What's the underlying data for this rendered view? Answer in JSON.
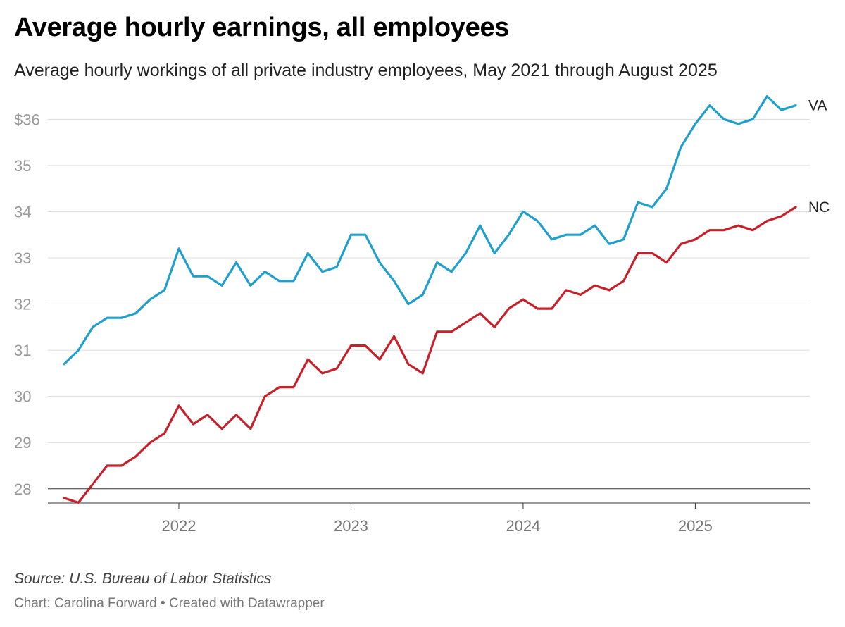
{
  "title": "Average hourly earnings, all employees",
  "subtitle": "Average hourly workings of all private industry employees, May 2021 through August 2025",
  "source": "Source: U.S. Bureau of Labor Statistics",
  "credit": {
    "chart_by": "Chart: Carolina Forward",
    "separator": " • ",
    "created_with": "Created with Datawrapper"
  },
  "chart_data": {
    "type": "line",
    "title": "Average hourly earnings, all employees",
    "xlabel": "",
    "ylabel": "",
    "x_start": "2021-05",
    "x_end": "2025-08",
    "x_ticks": [
      "2022",
      "2023",
      "2024",
      "2025"
    ],
    "y_ticks": [
      28,
      29,
      30,
      31,
      32,
      33,
      34,
      35,
      36
    ],
    "y_tick_labels": [
      "28",
      "29",
      "30",
      "31",
      "32",
      "33",
      "34",
      "35",
      "$36"
    ],
    "ylim": [
      27.6,
      36.6
    ],
    "grid": true,
    "legend": "line-end labels",
    "x": [
      "2021-05",
      "2021-06",
      "2021-07",
      "2021-08",
      "2021-09",
      "2021-10",
      "2021-11",
      "2021-12",
      "2022-01",
      "2022-02",
      "2022-03",
      "2022-04",
      "2022-05",
      "2022-06",
      "2022-07",
      "2022-08",
      "2022-09",
      "2022-10",
      "2022-11",
      "2022-12",
      "2023-01",
      "2023-02",
      "2023-03",
      "2023-04",
      "2023-05",
      "2023-06",
      "2023-07",
      "2023-08",
      "2023-09",
      "2023-10",
      "2023-11",
      "2023-12",
      "2024-01",
      "2024-02",
      "2024-03",
      "2024-04",
      "2024-05",
      "2024-06",
      "2024-07",
      "2024-08",
      "2024-09",
      "2024-10",
      "2024-11",
      "2024-12",
      "2025-01",
      "2025-02",
      "2025-03",
      "2025-04",
      "2025-05",
      "2025-06",
      "2025-07",
      "2025-08"
    ],
    "series": [
      {
        "name": "VA",
        "color": "#1FA0CC",
        "values": [
          30.7,
          31.0,
          31.5,
          31.7,
          31.7,
          31.8,
          32.1,
          32.3,
          33.2,
          32.6,
          32.6,
          32.4,
          32.9,
          32.4,
          32.7,
          32.5,
          32.5,
          33.1,
          32.7,
          32.8,
          33.5,
          33.5,
          32.9,
          32.5,
          32.0,
          32.2,
          32.9,
          32.7,
          33.1,
          33.7,
          33.1,
          33.5,
          34.0,
          33.8,
          33.4,
          33.5,
          33.5,
          33.7,
          33.3,
          33.4,
          34.2,
          34.1,
          34.5,
          35.4,
          35.9,
          36.3,
          36.0,
          35.9,
          36.0,
          36.5,
          36.2,
          36.3
        ]
      },
      {
        "name": "NC",
        "color": "#C8202A",
        "values": [
          27.8,
          27.7,
          28.1,
          28.5,
          28.5,
          28.7,
          29.0,
          29.2,
          29.8,
          29.4,
          29.6,
          29.3,
          29.6,
          29.3,
          30.0,
          30.2,
          30.2,
          30.8,
          30.5,
          30.6,
          31.1,
          31.1,
          30.8,
          31.3,
          30.7,
          30.5,
          31.4,
          31.4,
          31.6,
          31.8,
          31.5,
          31.9,
          32.1,
          31.9,
          31.9,
          32.3,
          32.2,
          32.4,
          32.3,
          32.5,
          33.1,
          33.1,
          32.9,
          33.3,
          33.4,
          33.6,
          33.6,
          33.7,
          33.6,
          33.8,
          33.9,
          34.1
        ]
      }
    ]
  }
}
